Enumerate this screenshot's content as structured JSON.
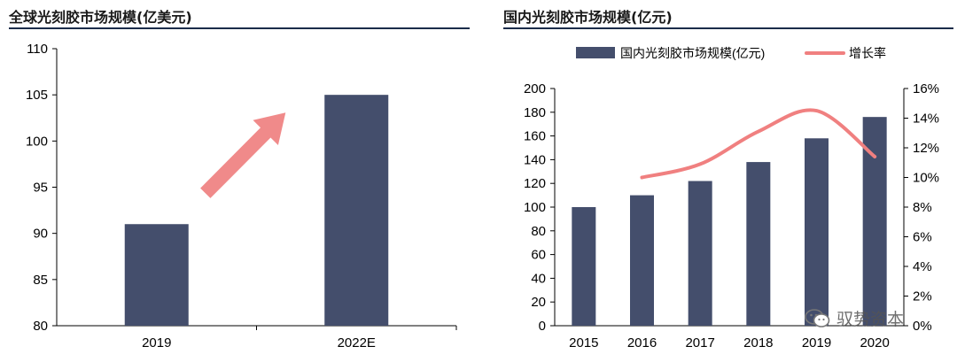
{
  "left_panel": {
    "title": "全球光刻胶市场规模(亿美元)"
  },
  "right_panel": {
    "title": "国内光刻胶市场规模(亿元)"
  },
  "watermark": {
    "text": "驭势资本",
    "icon": "wechat-icon"
  },
  "colors": {
    "bar": "#444e6c",
    "line": "#f08080",
    "arrow": "#f08a8a",
    "title_rule": "#1a2c4a"
  },
  "chart_data": [
    {
      "type": "bar",
      "title": "全球光刻胶市场规模(亿美元)",
      "categories": [
        "2019",
        "2022E"
      ],
      "values": [
        91,
        105
      ],
      "ylim": [
        80,
        110
      ],
      "yticks": [
        80,
        85,
        90,
        95,
        100,
        105,
        110
      ],
      "annotation": "upward-arrow",
      "grid": false
    },
    {
      "type": "bar",
      "title": "国内光刻胶市场规模(亿元)",
      "categories": [
        "2015",
        "2016",
        "2017",
        "2018",
        "2019",
        "2020"
      ],
      "series": [
        {
          "name": "国内光刻胶市场规模(亿元)",
          "type": "bar",
          "values": [
            100,
            110,
            122,
            138,
            158,
            176
          ]
        },
        {
          "name": "增长率",
          "type": "line",
          "axis": "secondary",
          "values": [
            null,
            10.0,
            10.9,
            13.1,
            14.5,
            11.4
          ]
        }
      ],
      "ylim": [
        0,
        200
      ],
      "yticks": [
        0,
        20,
        40,
        60,
        80,
        100,
        120,
        140,
        160,
        180,
        200
      ],
      "y2lim": [
        0,
        16
      ],
      "y2ticks": [
        "0%",
        "2%",
        "4%",
        "6%",
        "8%",
        "10%",
        "12%",
        "14%",
        "16%"
      ],
      "legend": "top",
      "grid": false
    }
  ]
}
